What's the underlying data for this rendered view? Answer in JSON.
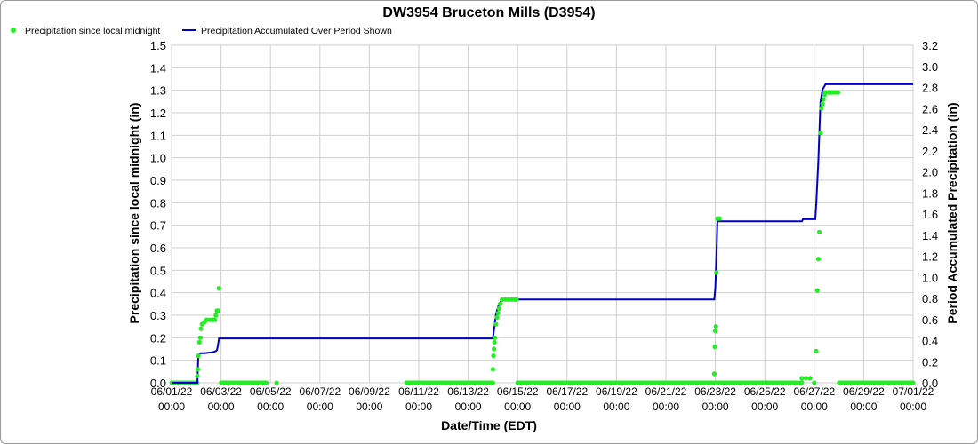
{
  "chart_data": {
    "type": "scatter",
    "title": "DW3954 Bruceton Mills (D3954)",
    "xlabel": "Date/Time (EDT)",
    "ylabel": "Precipitation since local midnight (in)",
    "y2label": "Period Accumulated Precipitation (in)",
    "xlim": [
      "2022-06-01",
      "2022-07-01"
    ],
    "ylim": [
      0,
      1.5
    ],
    "y2lim": [
      0,
      3.2
    ],
    "grid": true,
    "legend_position": "top-left",
    "x_ticks": [
      {
        "date": "06/01/22",
        "time": "00:00"
      },
      {
        "date": "06/03/22",
        "time": "00:00"
      },
      {
        "date": "06/05/22",
        "time": "00:00"
      },
      {
        "date": "06/07/22",
        "time": "00:00"
      },
      {
        "date": "06/09/22",
        "time": "00:00"
      },
      {
        "date": "06/11/22",
        "time": "00:00"
      },
      {
        "date": "06/13/22",
        "time": "00:00"
      },
      {
        "date": "06/15/22",
        "time": "00:00"
      },
      {
        "date": "06/17/22",
        "time": "00:00"
      },
      {
        "date": "06/19/22",
        "time": "00:00"
      },
      {
        "date": "06/21/22",
        "time": "00:00"
      },
      {
        "date": "06/23/22",
        "time": "00:00"
      },
      {
        "date": "06/25/22",
        "time": "00:00"
      },
      {
        "date": "06/27/22",
        "time": "00:00"
      },
      {
        "date": "06/29/22",
        "time": "00:00"
      },
      {
        "date": "07/01/22",
        "time": "00:00"
      }
    ],
    "y_ticks": [
      "0.0",
      "0.1",
      "0.2",
      "0.3",
      "0.4",
      "0.5",
      "0.6",
      "0.7",
      "0.8",
      "0.9",
      "1.0",
      "1.1",
      "1.2",
      "1.3",
      "1.4",
      "1.5"
    ],
    "y2_ticks": [
      "0.0",
      "0.2",
      "0.4",
      "0.6",
      "0.8",
      "1.0",
      "1.2",
      "1.4",
      "1.6",
      "1.8",
      "2.0",
      "2.2",
      "2.4",
      "2.6",
      "2.8",
      "3.0",
      "3.2"
    ],
    "series": [
      {
        "name": "Precipitation since local midnight",
        "color": "#22ee22",
        "marker": "circle",
        "zero_segments": [
          [
            "2022-06-01 00:00",
            "2022-06-02 01:00"
          ],
          [
            "2022-06-03 00:00",
            "2022-06-04 20:00"
          ],
          [
            "2022-06-10 12:00",
            "2022-06-14 00:00"
          ],
          [
            "2022-06-15 00:00",
            "2022-06-22 22:00"
          ],
          [
            "2022-06-23 00:00",
            "2022-06-26 12:00"
          ],
          [
            "2022-06-28 00:00",
            "2022-07-01 00:00"
          ]
        ],
        "points": [
          [
            "2022-06-05 06:00",
            0.0
          ],
          [
            "2022-06-02 01:00",
            0.03
          ],
          [
            "2022-06-02 01:30",
            0.06
          ],
          [
            "2022-06-02 02:00",
            0.12
          ],
          [
            "2022-06-02 03:00",
            0.18
          ],
          [
            "2022-06-02 04:00",
            0.2
          ],
          [
            "2022-06-02 04:30",
            0.24
          ],
          [
            "2022-06-02 05:30",
            0.26
          ],
          [
            "2022-06-02 08:00",
            0.27
          ],
          [
            "2022-06-02 10:00",
            0.28
          ],
          [
            "2022-06-02 13:00",
            0.28
          ],
          [
            "2022-06-02 16:00",
            0.28
          ],
          [
            "2022-06-02 18:00",
            0.28
          ],
          [
            "2022-06-02 19:00",
            0.3
          ],
          [
            "2022-06-02 20:00",
            0.32
          ],
          [
            "2022-06-02 21:00",
            0.32
          ],
          [
            "2022-06-02 22:00",
            0.42
          ],
          [
            "2022-06-14 00:00",
            0.06
          ],
          [
            "2022-06-14 00:30",
            0.12
          ],
          [
            "2022-06-14 01:00",
            0.15
          ],
          [
            "2022-06-14 01:30",
            0.18
          ],
          [
            "2022-06-14 02:00",
            0.2
          ],
          [
            "2022-06-14 03:00",
            0.26
          ],
          [
            "2022-06-14 04:00",
            0.29
          ],
          [
            "2022-06-14 05:00",
            0.31
          ],
          [
            "2022-06-14 06:00",
            0.33
          ],
          [
            "2022-06-14 07:00",
            0.35
          ],
          [
            "2022-06-14 09:00",
            0.37
          ],
          [
            "2022-06-14 12:00",
            0.37
          ],
          [
            "2022-06-14 15:00",
            0.37
          ],
          [
            "2022-06-14 18:00",
            0.37
          ],
          [
            "2022-06-14 21:00",
            0.37
          ],
          [
            "2022-06-14 23:00",
            0.37
          ],
          [
            "2022-06-22 23:00",
            0.04
          ],
          [
            "2022-06-22 23:30",
            0.16
          ],
          [
            "2022-06-23 00:00",
            0.23
          ],
          [
            "2022-06-23 00:30",
            0.25
          ],
          [
            "2022-06-23 01:00",
            0.49
          ],
          [
            "2022-06-23 02:00",
            0.73
          ],
          [
            "2022-06-23 04:00",
            0.73
          ],
          [
            "2022-06-26 12:00",
            0.02
          ],
          [
            "2022-06-26 16:00",
            0.02
          ],
          [
            "2022-06-26 20:00",
            0.02
          ],
          [
            "2022-06-27 00:00",
            0.0
          ],
          [
            "2022-06-27 02:00",
            0.14
          ],
          [
            "2022-06-27 03:00",
            0.41
          ],
          [
            "2022-06-27 04:00",
            0.55
          ],
          [
            "2022-06-27 05:00",
            0.67
          ],
          [
            "2022-06-27 06:00",
            1.11
          ],
          [
            "2022-06-27 07:00",
            1.22
          ],
          [
            "2022-06-27 08:00",
            1.24
          ],
          [
            "2022-06-27 09:00",
            1.26
          ],
          [
            "2022-06-27 10:00",
            1.28
          ],
          [
            "2022-06-27 11:00",
            1.29
          ],
          [
            "2022-06-27 14:00",
            1.29
          ],
          [
            "2022-06-27 17:00",
            1.29
          ],
          [
            "2022-06-27 20:00",
            1.29
          ],
          [
            "2022-06-27 23:00",
            1.29
          ]
        ]
      },
      {
        "name": "Precipitation Accumulated Over Period Shown",
        "color": "#0000cc",
        "axis": "right",
        "points": [
          [
            "2022-06-01 00:00",
            0.0
          ],
          [
            "2022-06-02 01:00",
            0.0
          ],
          [
            "2022-06-02 02:00",
            0.26
          ],
          [
            "2022-06-02 04:00",
            0.28
          ],
          [
            "2022-06-02 08:00",
            0.28
          ],
          [
            "2022-06-02 16:00",
            0.29
          ],
          [
            "2022-06-02 19:00",
            0.3
          ],
          [
            "2022-06-02 20:00",
            0.31
          ],
          [
            "2022-06-02 21:00",
            0.35
          ],
          [
            "2022-06-02 22:00",
            0.42
          ],
          [
            "2022-06-14 00:00",
            0.42
          ],
          [
            "2022-06-14 01:00",
            0.5
          ],
          [
            "2022-06-14 03:00",
            0.65
          ],
          [
            "2022-06-14 05:00",
            0.72
          ],
          [
            "2022-06-14 07:00",
            0.76
          ],
          [
            "2022-06-14 09:00",
            0.79
          ],
          [
            "2022-06-22 23:00",
            0.79
          ],
          [
            "2022-06-23 00:00",
            0.9
          ],
          [
            "2022-06-23 01:00",
            1.2
          ],
          [
            "2022-06-23 02:00",
            1.53
          ],
          [
            "2022-06-26 12:00",
            1.53
          ],
          [
            "2022-06-26 13:00",
            1.55
          ],
          [
            "2022-06-27 01:00",
            1.55
          ],
          [
            "2022-06-27 02:00",
            1.7
          ],
          [
            "2022-06-27 04:00",
            2.1
          ],
          [
            "2022-06-27 06:00",
            2.66
          ],
          [
            "2022-06-27 08:00",
            2.78
          ],
          [
            "2022-06-27 11:00",
            2.83
          ],
          [
            "2022-07-01 00:00",
            2.83
          ]
        ]
      }
    ]
  }
}
